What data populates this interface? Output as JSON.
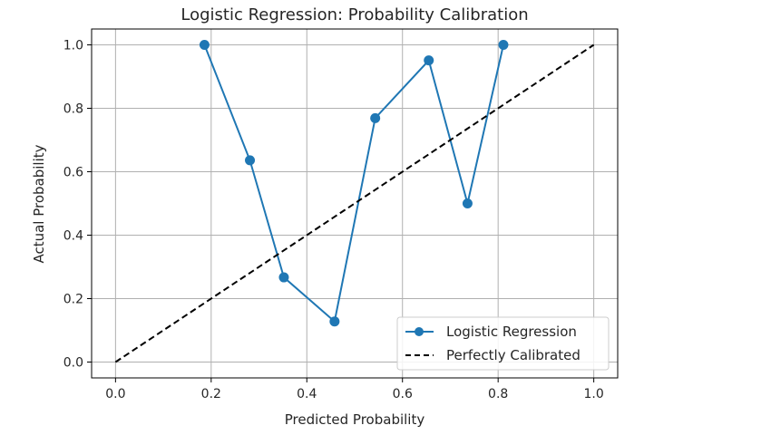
{
  "chart_data": {
    "type": "line",
    "title": "Logistic Regression: Probability Calibration",
    "xlabel": "Predicted Probability",
    "ylabel": "Actual Probability",
    "xlim": [
      -0.05,
      1.05
    ],
    "ylim": [
      -0.05,
      1.05
    ],
    "xticks": [
      0.0,
      0.2,
      0.4,
      0.6,
      0.8,
      1.0
    ],
    "yticks": [
      0.0,
      0.2,
      0.4,
      0.6,
      0.8,
      1.0
    ],
    "xtick_labels": [
      "0.0",
      "0.2",
      "0.4",
      "0.6",
      "0.8",
      "1.0"
    ],
    "ytick_labels": [
      "0.0",
      "0.2",
      "0.4",
      "0.6",
      "0.8",
      "1.0"
    ],
    "grid": true,
    "legend_position": "lower-right",
    "series": [
      {
        "name": "Logistic Regression",
        "style": "solid-line-circle-markers",
        "color": "#1f77b4",
        "x": [
          0.186,
          0.281,
          0.352,
          0.458,
          0.543,
          0.655,
          0.736,
          0.811
        ],
        "y": [
          1.0,
          0.636,
          0.267,
          0.128,
          0.769,
          0.951,
          0.5,
          1.0
        ]
      },
      {
        "name": "Perfectly Calibrated",
        "style": "dashed-line",
        "color": "#000000",
        "x": [
          0.0,
          1.0
        ],
        "y": [
          0.0,
          1.0
        ]
      }
    ]
  }
}
